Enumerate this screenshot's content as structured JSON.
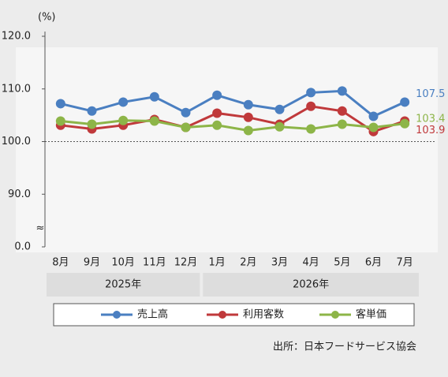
{
  "chart_data": {
    "type": "line",
    "y_label": "(%)",
    "categories": [
      "8月",
      "9月",
      "10月",
      "11月",
      "12月",
      "1月",
      "2月",
      "3月",
      "4月",
      "5月",
      "6月",
      "7月"
    ],
    "x_groups": [
      {
        "label": "2025年",
        "start": 0,
        "end": 4
      },
      {
        "label": "2026年",
        "start": 5,
        "end": 11
      }
    ],
    "series": [
      {
        "name": "売上高",
        "color": "#4a7fc1",
        "values": [
          107.2,
          105.8,
          107.5,
          108.5,
          105.5,
          108.8,
          107.0,
          106.1,
          109.3,
          109.6,
          104.8,
          107.5
        ]
      },
      {
        "name": "利用客数",
        "color": "#c0393b",
        "values": [
          103.1,
          102.4,
          103.1,
          104.2,
          102.7,
          105.4,
          104.6,
          103.3,
          106.7,
          105.8,
          101.9,
          103.9
        ]
      },
      {
        "name": "客単価",
        "color": "#8db548",
        "values": [
          103.9,
          103.3,
          104.0,
          103.9,
          102.7,
          103.1,
          102.1,
          102.8,
          102.4,
          103.3,
          102.7,
          103.4
        ]
      }
    ],
    "ylim": [
      0,
      120
    ],
    "yticks": [
      {
        "value": 0,
        "label": "0.0"
      },
      {
        "value": 90,
        "label": "90.0"
      },
      {
        "value": 100,
        "label": "100.0"
      },
      {
        "value": 110,
        "label": "110.0"
      },
      {
        "value": 120,
        "label": "120.0"
      }
    ],
    "axis_break": true,
    "baseline": 100,
    "legend": "bottom",
    "source": "出所：日本フードサービス協会"
  }
}
